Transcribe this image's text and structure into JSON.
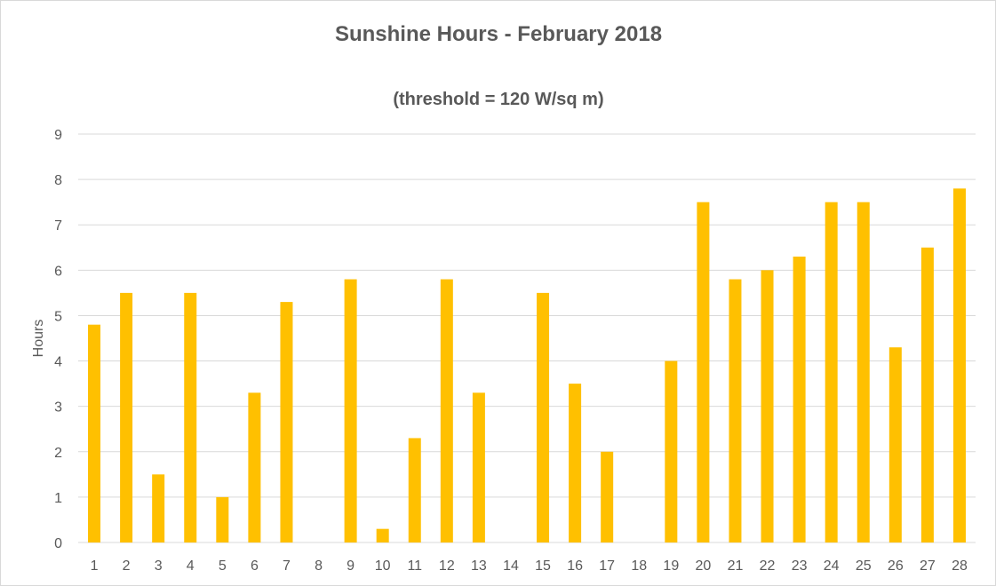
{
  "chart_data": {
    "type": "bar",
    "title": "Sunshine Hours - February 2018",
    "subtitle": "(threshold = 120 W/sq m)",
    "xlabel": "",
    "ylabel": "Hours",
    "categories": [
      "1",
      "2",
      "3",
      "4",
      "5",
      "6",
      "7",
      "8",
      "9",
      "10",
      "11",
      "12",
      "13",
      "14",
      "15",
      "16",
      "17",
      "18",
      "19",
      "20",
      "21",
      "22",
      "23",
      "24",
      "25",
      "26",
      "27",
      "28"
    ],
    "values": [
      4.8,
      5.5,
      1.5,
      5.5,
      1.0,
      3.3,
      5.3,
      0,
      5.8,
      0.3,
      2.3,
      5.8,
      3.3,
      0,
      5.5,
      3.5,
      2.0,
      0,
      4.0,
      7.5,
      5.8,
      6.0,
      6.3,
      7.5,
      7.5,
      4.3,
      6.5,
      7.8
    ],
    "ylim": [
      0,
      9
    ],
    "yticks": [
      0,
      1,
      2,
      3,
      4,
      5,
      6,
      7,
      8,
      9
    ],
    "grid": true,
    "bar_color": "#FFC000",
    "grid_color": "#d9d9d9",
    "text_color": "#595959"
  }
}
